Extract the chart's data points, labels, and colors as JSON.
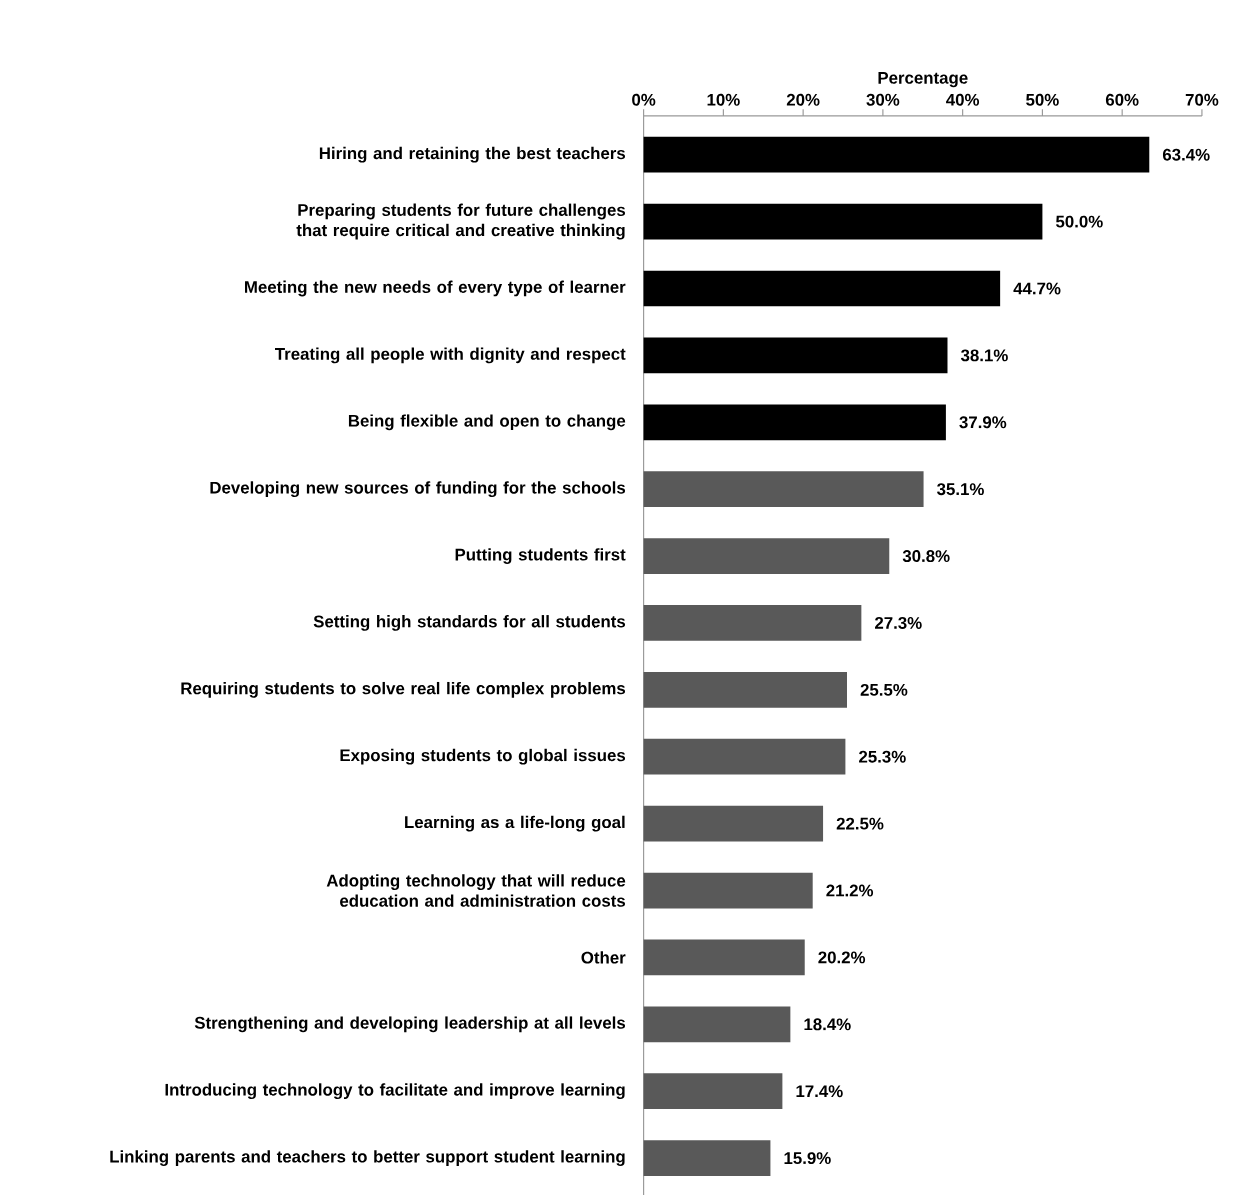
{
  "chart_data": {
    "type": "bar",
    "orientation": "horizontal",
    "xlabel": "Percentage",
    "categories": [
      "Hiring and retaining the best teachers",
      "Preparing students for future challenges that require critical and creative thinking",
      "Meeting the new needs of every type of learner",
      "Treating all people with dignity and respect",
      "Being flexible and open to change",
      "Developing new sources of funding for the schools",
      "Putting students first",
      "Setting high standards for all students",
      "Requiring students to solve real life complex problems",
      "Exposing students to global issues",
      "Learning as a life-long goal",
      "Adopting technology that will reduce education and administration costs",
      "Other",
      "Strengthening and developing leadership at all levels",
      "Introducing technology to facilitate and improve learning",
      "Linking parents and teachers to better support student learning"
    ],
    "values": [
      63.4,
      50.0,
      44.7,
      38.1,
      37.9,
      35.1,
      30.8,
      27.3,
      25.5,
      25.3,
      22.5,
      21.2,
      20.2,
      18.4,
      17.4,
      15.9
    ],
    "value_labels": [
      "63.4%",
      "50.0%",
      "44.7%",
      "38.1%",
      "37.9%",
      "35.1%",
      "30.8%",
      "27.3%",
      "25.5%",
      "25.3%",
      "22.5%",
      "21.2%",
      "20.2%",
      "18.4%",
      "17.4%",
      "15.9%"
    ],
    "colors": [
      "#000000",
      "#000000",
      "#000000",
      "#000000",
      "#000000",
      "#595959",
      "#595959",
      "#595959",
      "#595959",
      "#595959",
      "#595959",
      "#595959",
      "#595959",
      "#595959",
      "#595959",
      "#595959"
    ],
    "xlim": [
      0,
      70
    ],
    "xticks": [
      {
        "value": 0,
        "label": "0%"
      },
      {
        "value": 10,
        "label": "10%"
      },
      {
        "value": 20,
        "label": "20%"
      },
      {
        "value": 30,
        "label": "30%"
      },
      {
        "value": 40,
        "label": "40%"
      },
      {
        "value": 50,
        "label": "50%"
      },
      {
        "value": 60,
        "label": "60%"
      },
      {
        "value": 70,
        "label": "70%"
      }
    ]
  }
}
